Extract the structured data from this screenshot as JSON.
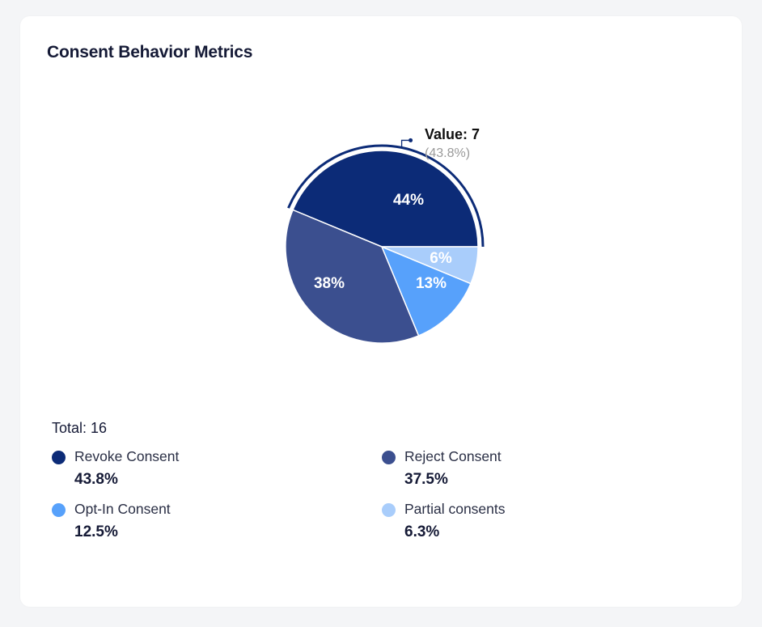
{
  "card": {
    "title": "Consent Behavior Metrics"
  },
  "chart_data": {
    "type": "pie",
    "title": "Consent Behavior Metrics",
    "total_label": "Total: 16",
    "slices": [
      {
        "name": "Revoke Consent",
        "value": 7,
        "percent_label": "44%",
        "legend_percent": "43.8%",
        "color": "#0c2b77"
      },
      {
        "name": "Reject Consent",
        "value": 6,
        "percent_label": "38%",
        "legend_percent": "37.5%",
        "color": "#3b4f8f"
      },
      {
        "name": "Opt-In Consent",
        "value": 2,
        "percent_label": "13%",
        "legend_percent": "12.5%",
        "color": "#57a1fb"
      },
      {
        "name": "Partial consents",
        "value": 1,
        "percent_label": "6%",
        "legend_percent": "6.3%",
        "color": "#a9cdfb"
      }
    ],
    "tooltip": {
      "slice": "Revoke Consent",
      "value_label": "Value: 7",
      "percent_label": "(43.8%)"
    }
  }
}
